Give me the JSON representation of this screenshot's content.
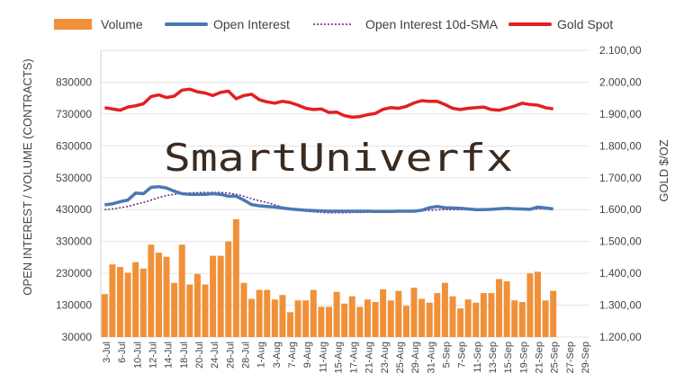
{
  "legend": [
    {
      "label": "Volume",
      "style": "bar",
      "color": "#f0913a"
    },
    {
      "label": "Open Interest",
      "style": "line",
      "color": "#4a78b4"
    },
    {
      "label": "Open Interest 10d-SMA",
      "style": "dotted",
      "color": "#6a1f7a"
    },
    {
      "label": "Gold Spot",
      "style": "line",
      "color": "#e41f1f"
    }
  ],
  "watermark": "SmartUniverfx",
  "chart_data": {
    "type": "bar",
    "xlabel": "",
    "ylabel_left": "OPEN INTEREST / VOLUME (CONTRACTS)",
    "ylabel_right": "GOLD $/OZ",
    "ylim_left": [
      30000,
      930000
    ],
    "ylim_right": [
      1200,
      2100
    ],
    "left_ticks": [
      "30000",
      "130000",
      "230000",
      "330000",
      "430000",
      "530000",
      "630000",
      "730000",
      "830000"
    ],
    "right_ticks": [
      "1.200,00",
      "1.300,00",
      "1.400,00",
      "1.500,00",
      "1.600,00",
      "1.700,00",
      "1.800,00",
      "1.900,00",
      "2.000,00",
      "2.100,00"
    ],
    "x_tick_labels": [
      "3-Jul",
      "6-Jul",
      "10-Jul",
      "12-Jul",
      "14-Jul",
      "18-Jul",
      "20-Jul",
      "24-Jul",
      "26-Jul",
      "28-Jul",
      "1-Aug",
      "3-Aug",
      "7-Aug",
      "9-Aug",
      "11-Aug",
      "15-Aug",
      "17-Aug",
      "21-Aug",
      "23-Aug",
      "25-Aug",
      "29-Aug",
      "31-Aug",
      "5-Sep",
      "7-Sep",
      "11-Sep",
      "13-Sep",
      "15-Sep",
      "19-Sep",
      "21-Sep",
      "25-Sep",
      "27-Sep",
      "29-Sep"
    ],
    "grid": true,
    "legend_position": "top",
    "series": [
      {
        "name": "Volume",
        "type": "bar",
        "axis": "left",
        "values": [
          165000,
          258000,
          250000,
          232000,
          265000,
          245000,
          320000,
          295000,
          282000,
          200000,
          320000,
          195000,
          228000,
          195000,
          285000,
          285000,
          330000,
          400000,
          200000,
          150000,
          178000,
          178000,
          148000,
          162000,
          108000,
          145000,
          145000,
          178000,
          125000,
          125000,
          172000,
          135000,
          158000,
          125000,
          148000,
          140000,
          180000,
          145000,
          175000,
          128000,
          185000,
          150000,
          138000,
          168000,
          200000,
          158000,
          120000,
          148000,
          138000,
          168000,
          168000,
          212000,
          205000,
          145000,
          140000,
          230000,
          235000,
          145000,
          175000
        ]
      },
      {
        "name": "Open Interest",
        "type": "line",
        "axis": "left",
        "values": [
          445000,
          448000,
          455000,
          460000,
          482000,
          480000,
          500000,
          502000,
          498000,
          488000,
          480000,
          478000,
          478000,
          478000,
          480000,
          478000,
          472000,
          472000,
          460000,
          446000,
          442000,
          440000,
          438000,
          435000,
          432000,
          430000,
          428000,
          427000,
          426000,
          425000,
          425000,
          425000,
          425000,
          425000,
          425000,
          424000,
          424000,
          424000,
          425000,
          425000,
          425000,
          428000,
          436000,
          440000,
          436000,
          435000,
          434000,
          432000,
          430000,
          430000,
          431000,
          433000,
          434000,
          433000,
          432000,
          431000,
          438000,
          435000,
          432000
        ]
      },
      {
        "name": "Open Interest 10d-SMA",
        "type": "dotted",
        "axis": "left",
        "values": [
          430000,
          432000,
          436000,
          440000,
          447000,
          452000,
          460000,
          468000,
          474000,
          478000,
          480000,
          482000,
          483000,
          484000,
          484000,
          484000,
          482000,
          478000,
          472000,
          464000,
          458000,
          452000,
          445000,
          438000,
          432000,
          428000,
          425000,
          423000,
          421000,
          420000,
          420000,
          420000,
          421000,
          421000,
          422000,
          423000,
          423000,
          424000,
          424000,
          425000,
          426000,
          427000,
          428000,
          429000,
          430000,
          430000,
          430000,
          430000,
          431000,
          431000,
          432000,
          432000,
          432000,
          432000,
          432000,
          432000,
          432000,
          432000,
          432000
        ]
      },
      {
        "name": "Gold Spot",
        "type": "line",
        "axis": "right",
        "values": [
          1920,
          1916,
          1912,
          1922,
          1926,
          1932,
          1955,
          1960,
          1952,
          1956,
          1975,
          1978,
          1970,
          1966,
          1958,
          1968,
          1972,
          1948,
          1958,
          1962,
          1945,
          1938,
          1934,
          1940,
          1936,
          1928,
          1918,
          1914,
          1916,
          1905,
          1906,
          1895,
          1890,
          1892,
          1898,
          1902,
          1915,
          1920,
          1918,
          1924,
          1935,
          1942,
          1940,
          1940,
          1930,
          1918,
          1914,
          1918,
          1920,
          1922,
          1914,
          1912,
          1918,
          1925,
          1934,
          1930,
          1928,
          1920,
          1916
        ]
      }
    ]
  }
}
